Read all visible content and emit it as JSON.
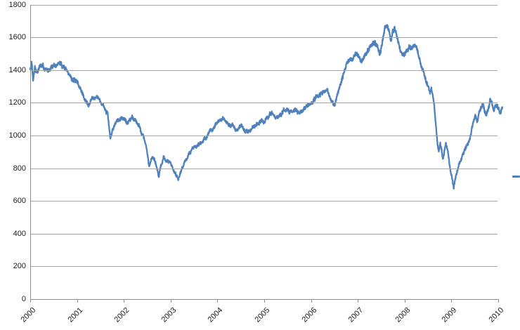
{
  "chart_data": {
    "type": "line",
    "title": "",
    "x_axis": {
      "tick_labels": [
        "2000",
        "2001",
        "2002",
        "2003",
        "2004",
        "2005",
        "2006",
        "2007",
        "2008",
        "2009",
        "2010"
      ],
      "range": [
        2000,
        2010.09
      ],
      "label_rotation_deg": -45
    },
    "y_axis": {
      "tick_labels": [
        "0",
        "200",
        "400",
        "600",
        "800",
        "1000",
        "1200",
        "1400",
        "1600",
        "1800"
      ],
      "tick_values": [
        0,
        200,
        400,
        600,
        800,
        1000,
        1200,
        1400,
        1600,
        1800
      ],
      "range": [
        0,
        1800
      ]
    },
    "grid": {
      "horizontal": true,
      "vertical": false
    },
    "legend": {
      "position": "right-edge",
      "marker_only_visible": true
    },
    "series": [
      {
        "name": "",
        "color": "#4F81BD",
        "style": "jagged-daily-line",
        "anchors_year_value": [
          [
            2000.0,
            1400
          ],
          [
            2000.03,
            1450
          ],
          [
            2000.06,
            1345
          ],
          [
            2000.1,
            1420
          ],
          [
            2000.15,
            1385
          ],
          [
            2000.21,
            1430
          ],
          [
            2000.29,
            1410
          ],
          [
            2000.38,
            1395
          ],
          [
            2000.46,
            1430
          ],
          [
            2000.54,
            1415
          ],
          [
            2000.6,
            1445
          ],
          [
            2000.67,
            1430
          ],
          [
            2000.75,
            1415
          ],
          [
            2000.83,
            1370
          ],
          [
            2000.92,
            1345
          ],
          [
            2001.0,
            1315
          ],
          [
            2001.08,
            1285
          ],
          [
            2001.17,
            1215
          ],
          [
            2001.25,
            1185
          ],
          [
            2001.33,
            1235
          ],
          [
            2001.42,
            1245
          ],
          [
            2001.5,
            1205
          ],
          [
            2001.58,
            1175
          ],
          [
            2001.65,
            1130
          ],
          [
            2001.71,
            980
          ],
          [
            2001.76,
            1035
          ],
          [
            2001.83,
            1085
          ],
          [
            2001.92,
            1115
          ],
          [
            2002.0,
            1105
          ],
          [
            2002.08,
            1075
          ],
          [
            2002.17,
            1115
          ],
          [
            2002.25,
            1100
          ],
          [
            2002.33,
            1055
          ],
          [
            2002.42,
            995
          ],
          [
            2002.48,
            925
          ],
          [
            2002.54,
            810
          ],
          [
            2002.6,
            875
          ],
          [
            2002.65,
            855
          ],
          [
            2002.71,
            800
          ],
          [
            2002.75,
            748
          ],
          [
            2002.8,
            815
          ],
          [
            2002.85,
            865
          ],
          [
            2002.9,
            845
          ],
          [
            2003.0,
            835
          ],
          [
            2003.05,
            795
          ],
          [
            2003.1,
            770
          ],
          [
            2003.16,
            738
          ],
          [
            2003.21,
            775
          ],
          [
            2003.25,
            805
          ],
          [
            2003.33,
            855
          ],
          [
            2003.42,
            900
          ],
          [
            2003.5,
            928
          ],
          [
            2003.58,
            948
          ],
          [
            2003.67,
            962
          ],
          [
            2003.75,
            988
          ],
          [
            2003.83,
            1012
          ],
          [
            2003.92,
            1048
          ],
          [
            2004.0,
            1080
          ],
          [
            2004.08,
            1098
          ],
          [
            2004.17,
            1088
          ],
          [
            2004.25,
            1058
          ],
          [
            2004.33,
            1072
          ],
          [
            2004.42,
            1022
          ],
          [
            2004.5,
            1062
          ],
          [
            2004.58,
            1028
          ],
          [
            2004.67,
            1025
          ],
          [
            2004.75,
            1050
          ],
          [
            2004.83,
            1070
          ],
          [
            2004.92,
            1090
          ],
          [
            2005.0,
            1082
          ],
          [
            2005.08,
            1108
          ],
          [
            2005.17,
            1146
          ],
          [
            2005.25,
            1102
          ],
          [
            2005.33,
            1122
          ],
          [
            2005.42,
            1142
          ],
          [
            2005.5,
            1160
          ],
          [
            2005.58,
            1146
          ],
          [
            2005.67,
            1170
          ],
          [
            2005.75,
            1128
          ],
          [
            2005.83,
            1156
          ],
          [
            2005.92,
            1180
          ],
          [
            2006.0,
            1192
          ],
          [
            2006.08,
            1216
          ],
          [
            2006.17,
            1240
          ],
          [
            2006.25,
            1262
          ],
          [
            2006.33,
            1272
          ],
          [
            2006.42,
            1225
          ],
          [
            2006.5,
            1188
          ],
          [
            2006.58,
            1260
          ],
          [
            2006.67,
            1350
          ],
          [
            2006.75,
            1425
          ],
          [
            2006.83,
            1462
          ],
          [
            2006.92,
            1482
          ],
          [
            2007.0,
            1498
          ],
          [
            2007.08,
            1452
          ],
          [
            2007.17,
            1495
          ],
          [
            2007.25,
            1540
          ],
          [
            2007.33,
            1568
          ],
          [
            2007.42,
            1552
          ],
          [
            2007.46,
            1492
          ],
          [
            2007.52,
            1555
          ],
          [
            2007.58,
            1648
          ],
          [
            2007.62,
            1672
          ],
          [
            2007.67,
            1618
          ],
          [
            2007.71,
            1582
          ],
          [
            2007.75,
            1645
          ],
          [
            2007.79,
            1662
          ],
          [
            2007.84,
            1598
          ],
          [
            2007.88,
            1548
          ],
          [
            2007.92,
            1512
          ],
          [
            2008.0,
            1488
          ],
          [
            2008.06,
            1510
          ],
          [
            2008.13,
            1545
          ],
          [
            2008.19,
            1560
          ],
          [
            2008.25,
            1532
          ],
          [
            2008.31,
            1470
          ],
          [
            2008.38,
            1408
          ],
          [
            2008.44,
            1352
          ],
          [
            2008.5,
            1298
          ],
          [
            2008.54,
            1252
          ],
          [
            2008.57,
            1288
          ],
          [
            2008.61,
            1225
          ],
          [
            2008.64,
            1155
          ],
          [
            2008.67,
            1052
          ],
          [
            2008.7,
            952
          ],
          [
            2008.73,
            902
          ],
          [
            2008.76,
            958
          ],
          [
            2008.79,
            908
          ],
          [
            2008.82,
            838
          ],
          [
            2008.85,
            908
          ],
          [
            2008.88,
            948
          ],
          [
            2008.92,
            898
          ],
          [
            2008.96,
            818
          ],
          [
            2009.0,
            758
          ],
          [
            2009.03,
            715
          ],
          [
            2009.05,
            688
          ],
          [
            2009.09,
            752
          ],
          [
            2009.14,
            808
          ],
          [
            2009.19,
            848
          ],
          [
            2009.25,
            888
          ],
          [
            2009.31,
            925
          ],
          [
            2009.37,
            958
          ],
          [
            2009.42,
            1000
          ],
          [
            2009.46,
            1065
          ],
          [
            2009.51,
            1128
          ],
          [
            2009.56,
            1092
          ],
          [
            2009.61,
            1148
          ],
          [
            2009.67,
            1180
          ],
          [
            2009.71,
            1152
          ],
          [
            2009.75,
            1128
          ],
          [
            2009.79,
            1168
          ],
          [
            2009.83,
            1230
          ],
          [
            2009.87,
            1195
          ],
          [
            2009.91,
            1150
          ],
          [
            2009.95,
            1185
          ],
          [
            2010.0,
            1170
          ],
          [
            2010.04,
            1128
          ],
          [
            2010.09,
            1158
          ]
        ]
      }
    ]
  },
  "colors": {
    "series_line": "#4F81BD",
    "legend_marker": "#4F81BD",
    "gridline": "#A6A6A6",
    "axis_line": "#8E8E8E",
    "tick_mark": "#8E8E8E",
    "label_text": "#1A1A1A",
    "background": "#FFFFFF"
  }
}
